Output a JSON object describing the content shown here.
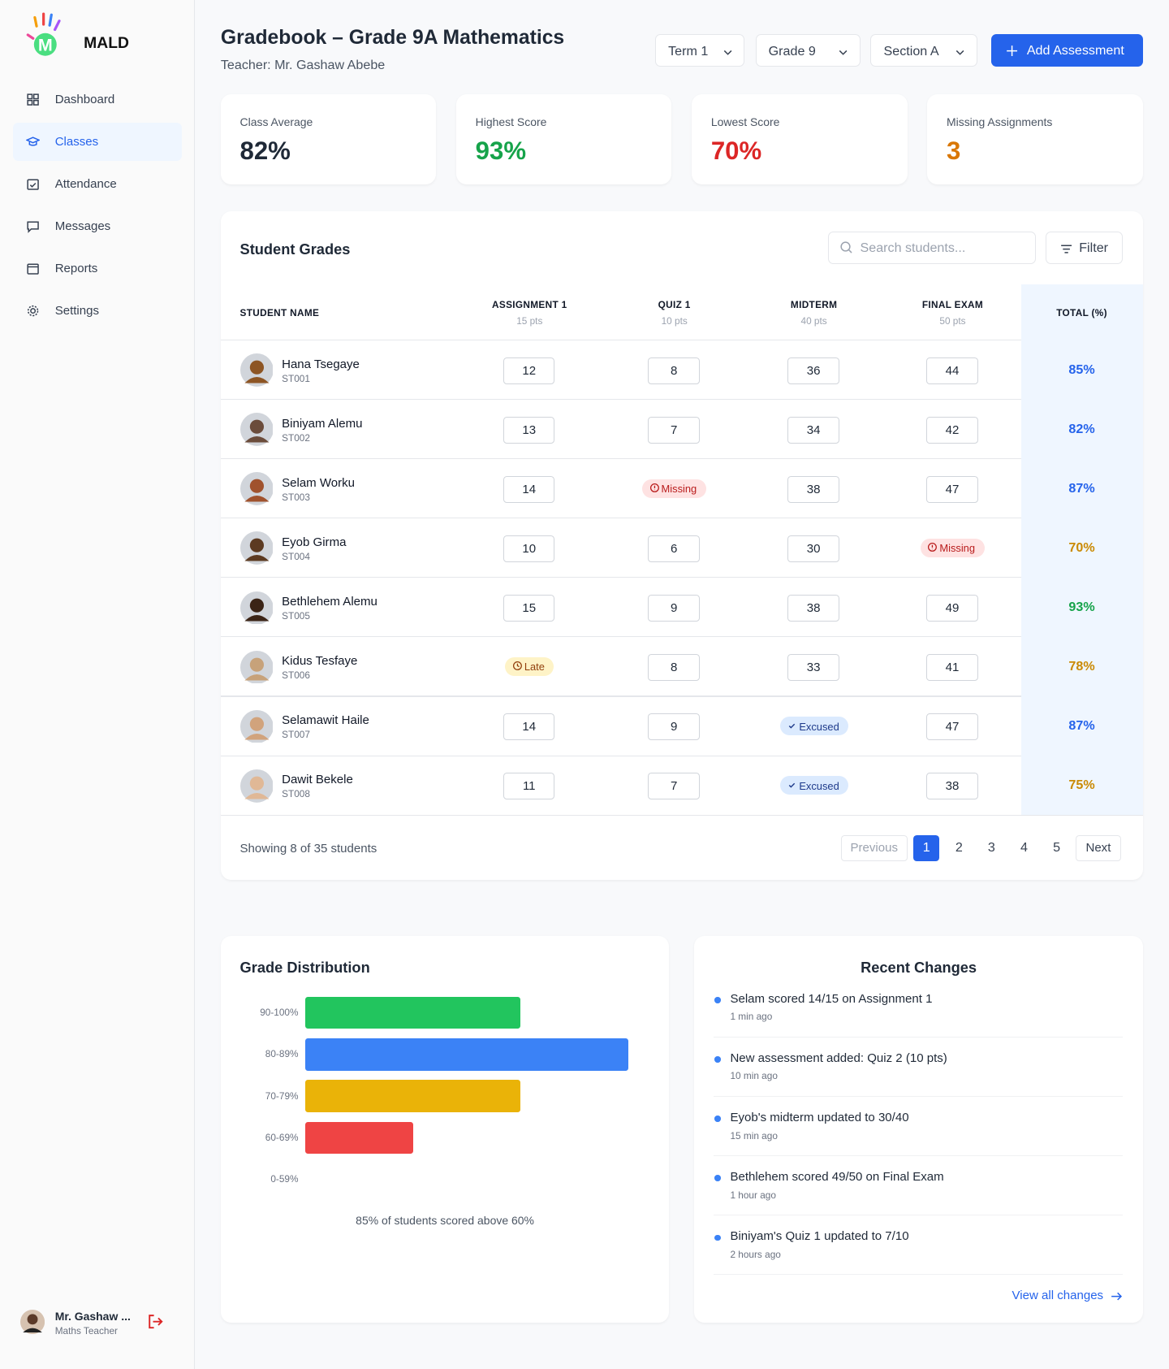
{
  "sidebar": {
    "brand": "MALD",
    "nav": [
      "Dashboard",
      "Classes",
      "Attendance",
      "Messages",
      "Reports",
      "Settings"
    ],
    "active": 1,
    "user": {
      "name": "Mr. Gashaw ...",
      "role": "Maths Teacher"
    }
  },
  "header": {
    "title": "Gradebook – Grade 9A Mathematics",
    "subtitle": "Teacher: Mr. Gashaw Abebe",
    "filters": [
      "Term 1",
      "Grade 9",
      "Section A"
    ],
    "button": "Add Assessment"
  },
  "stats": [
    {
      "label": "Class Average",
      "value": "82%",
      "color": "#1f2937"
    },
    {
      "label": "Highest Score",
      "value": "93%",
      "color": "#16a34a"
    },
    {
      "label": "Lowest Score",
      "value": "70%",
      "color": "#dc2626"
    },
    {
      "label": "Missing Assignments",
      "value": "3",
      "color": "#d97706"
    }
  ],
  "table": {
    "title": "Student Grades",
    "search_placeholder": "Search students...",
    "filter": "Filter",
    "columns": [
      {
        "name": "STUDENT NAME"
      },
      {
        "name": "ASSIGNMENT 1",
        "sub": "15 pts"
      },
      {
        "name": "QUIZ 1",
        "sub": "10 pts"
      },
      {
        "name": "MIDTERM",
        "sub": "40 pts"
      },
      {
        "name": "FINAL EXAM",
        "sub": "50 pts"
      },
      {
        "name": "TOTAL (%)"
      }
    ],
    "rows": [
      {
        "name": "Hana Tsegaye",
        "id": "ST001",
        "scores": [
          12,
          8,
          36,
          44
        ],
        "total": "85%",
        "total_color": "#2563eb"
      },
      {
        "name": "Biniyam Alemu",
        "id": "ST002",
        "scores": [
          13,
          7,
          34,
          42
        ],
        "total": "82%",
        "total_color": "#2563eb"
      },
      {
        "name": "Selam Worku",
        "id": "ST003",
        "scores": [
          14,
          "Missing",
          38,
          47
        ],
        "total": "87%",
        "total_color": "#2563eb"
      },
      {
        "name": "Eyob Girma",
        "id": "ST004",
        "scores": [
          10,
          6,
          30,
          "Missing"
        ],
        "total": "70%",
        "total_color": "#ca8a04"
      },
      {
        "name": "Bethlehem Alemu",
        "id": "ST005",
        "scores": [
          15,
          9,
          38,
          49
        ],
        "total": "93%",
        "total_color": "#16a34a"
      },
      {
        "name": "Kidus Tesfaye",
        "id": "ST006",
        "scores": [
          "Late",
          8,
          33,
          41
        ],
        "total": "78%",
        "total_color": "#ca8a04"
      },
      {
        "name": "Selamawit Haile",
        "id": "ST007",
        "scores": [
          14,
          9,
          "Excused",
          47
        ],
        "total": "87%",
        "total_color": "#2563eb"
      },
      {
        "name": "Dawit Bekele",
        "id": "ST008",
        "scores": [
          11,
          7,
          "Excused",
          38
        ],
        "total": "75%",
        "total_color": "#ca8a04"
      }
    ],
    "showing": "Showing 8 of 35 students",
    "previous": "Previous",
    "pages": [
      1,
      2,
      3,
      4,
      5
    ],
    "current": 0,
    "next": "Next"
  },
  "chart_data": {
    "type": "bar",
    "orientation": "horizontal",
    "title": "Grade Distribution",
    "categories": [
      "90-100%",
      "80-89%",
      "70-79%",
      "60-69%",
      "0-59%"
    ],
    "values": [
      2,
      3,
      2,
      1,
      0
    ],
    "colors": [
      "#22c55e",
      "#3b82f6",
      "#eab308",
      "#ef4444",
      "#9ca3af"
    ],
    "xlim": [
      0,
      3
    ],
    "note": "85% of students scored above 60%"
  },
  "recent": {
    "title": "Recent Changes",
    "items": [
      {
        "text": "Selam scored 14/15 on Assignment 1",
        "time": "1 min ago"
      },
      {
        "text": "New assessment added: Quiz 2 (10 pts)",
        "time": "10 min ago"
      },
      {
        "text": "Eyob's midterm updated to 30/40",
        "time": "15 min ago"
      },
      {
        "text": "Bethlehem scored 49/50 on Final Exam",
        "time": "1 hour ago"
      },
      {
        "text": "Biniyam's Quiz 1 updated to 7/10",
        "time": "2 hours ago"
      }
    ],
    "link": "View all changes"
  }
}
